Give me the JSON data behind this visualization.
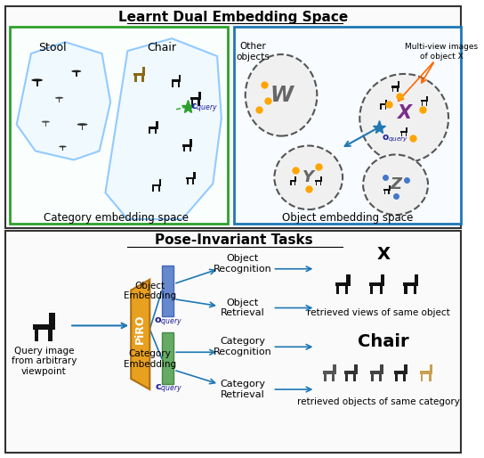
{
  "title_top": "Learnt Dual Embedding Space",
  "title_bottom": "Pose-Invariant Tasks",
  "bg_color": "#ffffff",
  "green_box_color": "#2ca02c",
  "blue_box_color": "#1f77b4",
  "cat_embed_label": "Category embedding space",
  "obj_embed_label": "Object embedding space",
  "stool_label": "Stool",
  "chair_label": "Chair",
  "other_objects_label": "Other\nobjects",
  "multi_view_label": "Multi-view images\nof object X",
  "piro_label": "PiRO",
  "obj_embed_label2": "Object\nEmbedding",
  "cat_embed_label2": "Category\nEmbedding",
  "obj_recog": "Object\nRecognition",
  "obj_retrieval": "Object\nRetrieval",
  "cat_recog": "Category\nRecognition",
  "cat_retrieval": "Category\nRetrieval",
  "query_img_label": "Query image\nfrom arbitrary\nviewpoint",
  "x_label": "X",
  "chair_label2": "Chair",
  "retrieved_obj": "retrieved views of same object",
  "retrieved_cat": "retrieved objects of same category",
  "o_query": "$\\mathbf{o}_{query}$",
  "c_query_bottom": "$\\mathbf{c}_{query}$",
  "c_query_top": "$\\mathbf{c}_{query}$",
  "o_query_top": "$\\mathbf{o}_{query}$",
  "W_label": "W",
  "X_label": "X",
  "Y_label": "Y",
  "Z_label": "Z"
}
